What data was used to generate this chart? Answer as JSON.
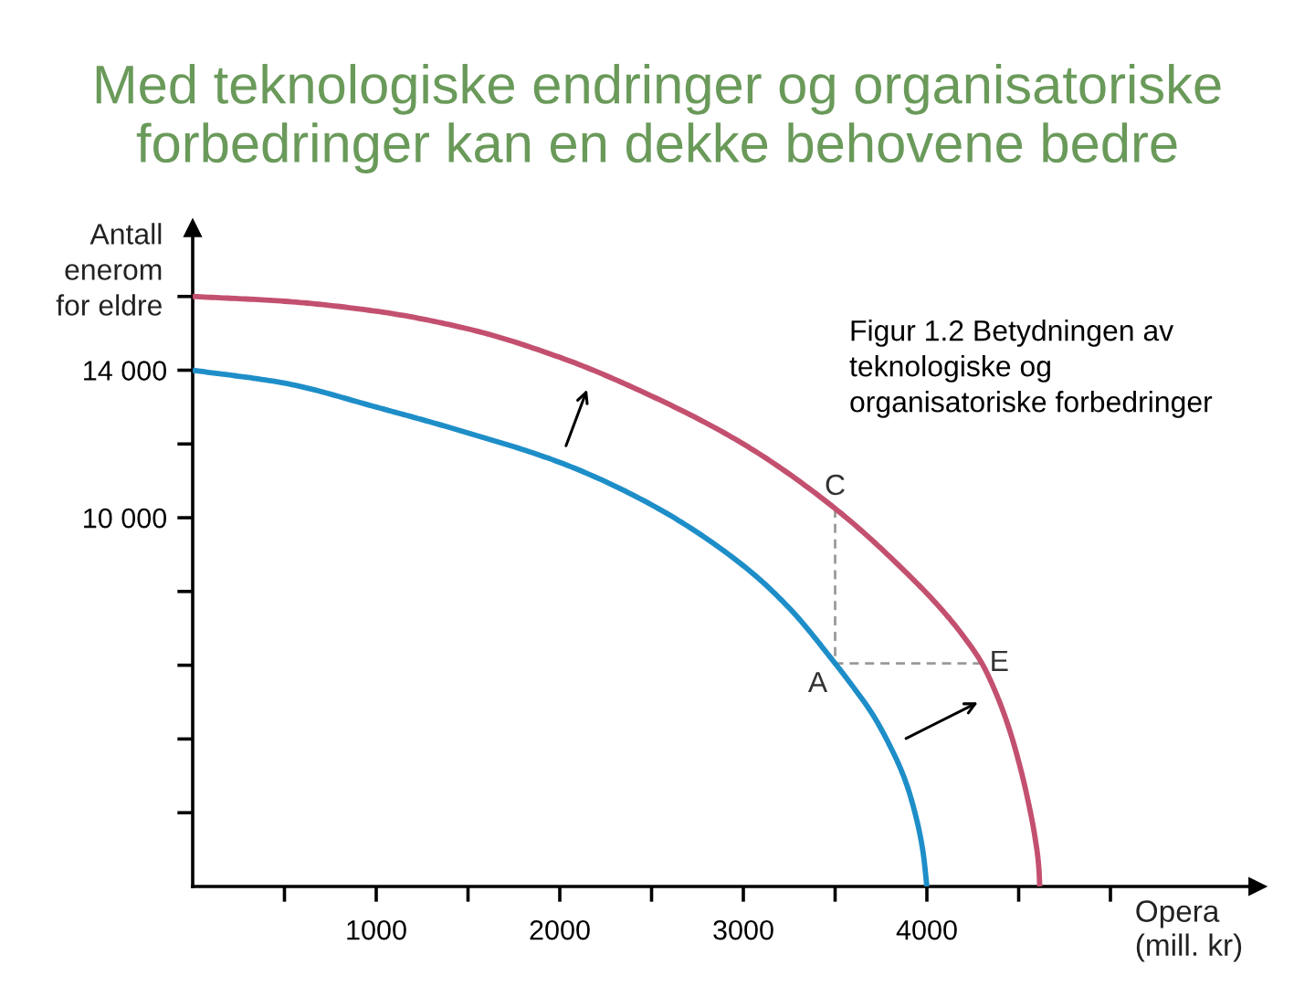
{
  "chart_data": {
    "type": "line",
    "title": "Med teknologiske endringer og organisatoriske forbedringer kan en dekke behovene bedre",
    "xlabel": "Opera\n(mill. kr)",
    "ylabel": "Antall\nenerom\nfor eldre",
    "annotations": [
      "Figur 1.2 Betydningen av\nteknologiske og\norganisatoriske forbedringer"
    ],
    "xlim": [
      0,
      5800
    ],
    "ylim": [
      0,
      17850
    ],
    "xticks": [
      {
        "value": 500,
        "label": null
      },
      1000,
      {
        "value": 1500,
        "label": null
      },
      2000,
      {
        "value": 2500,
        "label": null
      },
      3000,
      {
        "value": 3500,
        "label": null
      },
      4000,
      {
        "value": 4500,
        "label": null
      },
      {
        "value": 5000,
        "label": null
      }
    ],
    "yticks": [
      {
        "value": 2000,
        "label": null
      },
      {
        "value": 4000,
        "label": null
      },
      {
        "value": 6000,
        "label": null
      },
      {
        "value": 8000,
        "label": null
      },
      {
        "value": 10000,
        "label": "10 000"
      },
      {
        "value": 12000,
        "label": null
      },
      {
        "value": 14000,
        "label": "14 000"
      },
      {
        "value": 16000,
        "label": null
      }
    ],
    "line_style": "solid",
    "series": [
      {
        "color": "#1e8ec8",
        "x": [
          0,
          500,
          1000,
          1500,
          2000,
          2500,
          3000,
          3250,
          3500,
          3600,
          3700,
          3800,
          3880,
          3940,
          3980,
          4000
        ],
        "values": [
          14000,
          13650,
          13000,
          12300,
          11500,
          10350,
          8700,
          7550,
          6050,
          5400,
          4700,
          3800,
          2900,
          1900,
          900,
          0
        ]
      },
      {
        "color": "#c3506f",
        "x": [
          0,
          500,
          1000,
          1500,
          2000,
          2500,
          3000,
          3500,
          3900,
          4100,
          4200,
          4300,
          4380,
          4450,
          4510,
          4550,
          4590,
          4610,
          4615
        ],
        "values": [
          16000,
          15870,
          15600,
          15120,
          14350,
          13300,
          12000,
          10250,
          8450,
          7400,
          6780,
          6050,
          5200,
          4250,
          3200,
          2350,
          1300,
          500,
          0
        ]
      },
      {
        "color": "#9a9a9a",
        "line_style": "dashed",
        "x": [
          3500,
          3500,
          4300
        ],
        "values": [
          10250,
          6050,
          6050
        ],
        "value_labels": [
          "C",
          "A",
          "E"
        ]
      }
    ]
  }
}
